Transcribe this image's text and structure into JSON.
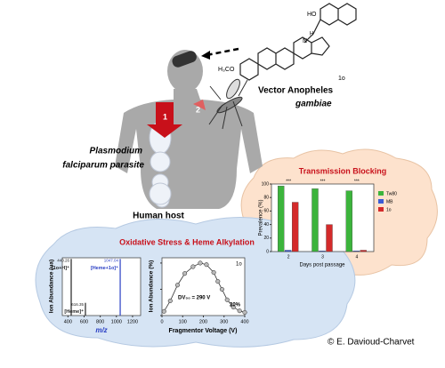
{
  "molecule": {
    "hydroxyl": "HO",
    "amine_h": "H",
    "amine_n": "N",
    "methoxy": "H₃CO",
    "compound": "1o"
  },
  "parasite": {
    "line1": "Plasmodium",
    "line2": "falciparum parasite"
  },
  "host": "Human host",
  "vector": {
    "line1": "Vector Anopheles",
    "line2": "gambiae"
  },
  "steps": [
    "1",
    "2"
  ],
  "transmission": {
    "title": "Transmission Blocking",
    "ylabel": "Prevalence (%)",
    "xlabel": "Days post passage",
    "categories": [
      "2",
      "3",
      "4"
    ],
    "ylim": [
      0,
      100
    ],
    "yticks": [
      0,
      20,
      40,
      60,
      80,
      100
    ],
    "significance": [
      "***",
      "***",
      "***"
    ],
    "series": [
      {
        "name": "Tw80",
        "color": "#3cb43c",
        "values": [
          97,
          93,
          90
        ]
      },
      {
        "name": "MB",
        "color": "#3b5bd6",
        "values": [
          2,
          1,
          1
        ]
      },
      {
        "name": "1o",
        "color": "#d42a2a",
        "values": [
          73,
          40,
          2
        ]
      }
    ]
  },
  "oxidative": {
    "title": "Oxidative Stress & Heme Alkylation",
    "spectrum": {
      "ylabel": "Ion Abundance (ua)",
      "xlabel": "m/z",
      "xlim": [
        330,
        1300
      ],
      "xticks": [
        400,
        600,
        800,
        1000,
        1200
      ],
      "ylim": [
        0,
        100
      ],
      "peaks": [
        {
          "x": 440.26,
          "height": 98,
          "mz": "440.26",
          "ion": "[1o+H]⁺",
          "color": "#222"
        },
        {
          "x": 616.35,
          "height": 22,
          "mz": "616.35",
          "ion": "[Heme]⁺",
          "color": "#222"
        },
        {
          "x": 1047.04,
          "height": 98,
          "mz": "1047.04",
          "ion": "[Heme+1o]⁺",
          "color": "#2a3fc4"
        }
      ]
    },
    "fragmentation": {
      "label": "1o",
      "ylabel": "Ion Abundance (%)",
      "xlabel": "Fragmentor Voltage (V)",
      "xlim": [
        0,
        400
      ],
      "xticks": [
        0,
        100,
        200,
        300,
        400
      ],
      "ylim": [
        0,
        110
      ],
      "yticks": [
        0,
        50,
        100
      ],
      "x": [
        10,
        40,
        75,
        110,
        150,
        185,
        215,
        250,
        270,
        290,
        315,
        345,
        375,
        400
      ],
      "values": [
        8,
        28,
        58,
        80,
        93,
        100,
        97,
        82,
        65,
        50,
        30,
        16,
        9,
        6
      ],
      "dv50": "DV₅₀ = 290 V",
      "note": "20%"
    }
  },
  "credit": "© E. Davioud-Charvet"
}
